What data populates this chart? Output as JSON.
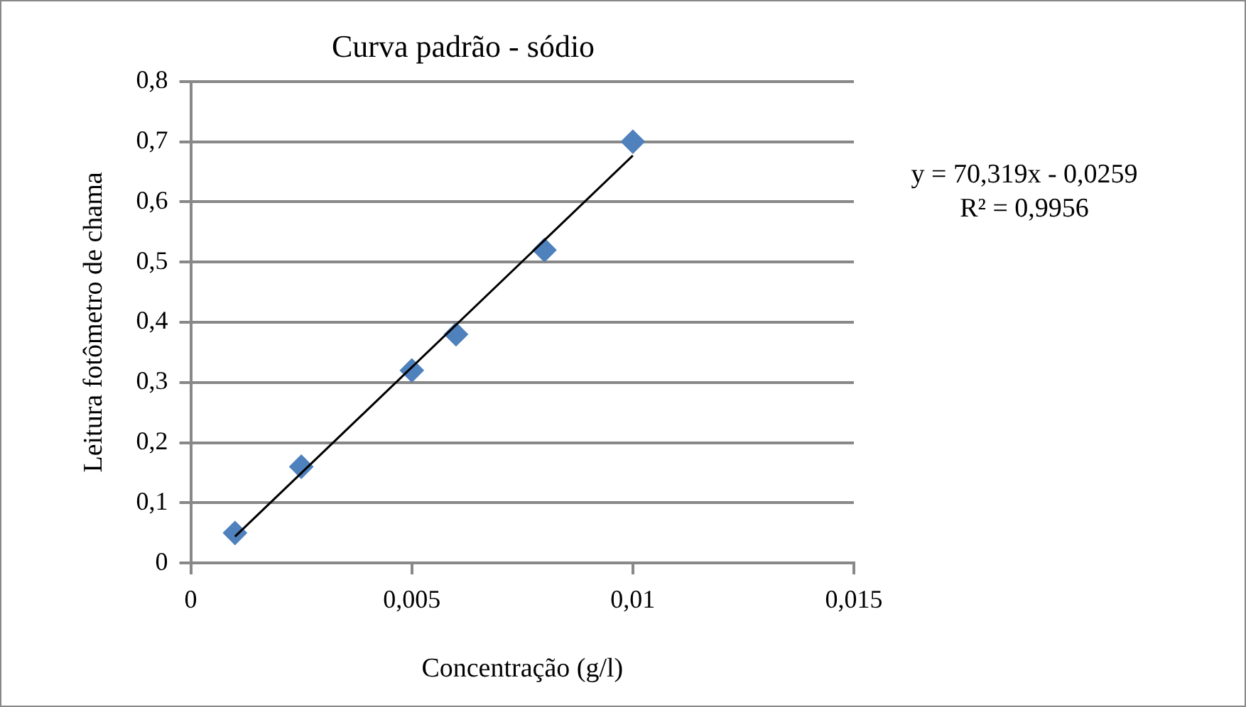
{
  "chart_data": {
    "type": "scatter",
    "title": "Curva padrão - sódio",
    "xlabel": "Concentração (g/l)",
    "ylabel": "Leitura fotômetro de chama",
    "x": [
      0.001,
      0.0025,
      0.005,
      0.006,
      0.008,
      0.01
    ],
    "series": [
      {
        "type": "scatter",
        "color": "#4f81bd",
        "marker": "diamond",
        "values": [
          0.05,
          0.16,
          0.32,
          0.38,
          0.52,
          0.7
        ]
      },
      {
        "type": "line",
        "color": "#000000",
        "marker": "none",
        "x": [
          0.001,
          0.01
        ],
        "values": [
          0.044,
          0.677
        ]
      }
    ],
    "xlim": [
      0,
      0.015
    ],
    "xticks": [
      0,
      {
        "value": 0.005,
        "label": "0,005"
      },
      {
        "value": 0.01,
        "label": "0,01"
      },
      {
        "value": 0.015,
        "label": "0,015"
      }
    ],
    "ylim": [
      0,
      0.8
    ],
    "yticks": [
      0,
      {
        "value": 0.1,
        "label": "0,1"
      },
      {
        "value": 0.2,
        "label": "0,2"
      },
      {
        "value": 0.3,
        "label": "0,3"
      },
      {
        "value": 0.4,
        "label": "0,4"
      },
      {
        "value": 0.5,
        "label": "0,5"
      },
      {
        "value": 0.6,
        "label": "0,6"
      },
      {
        "value": 0.7,
        "label": "0,7"
      },
      {
        "value": 0.8,
        "label": "0,8"
      }
    ],
    "grid": "y",
    "legend": false,
    "annotations": [
      "y = 70,319x - 0,0259",
      "R² = 0,9956"
    ]
  }
}
